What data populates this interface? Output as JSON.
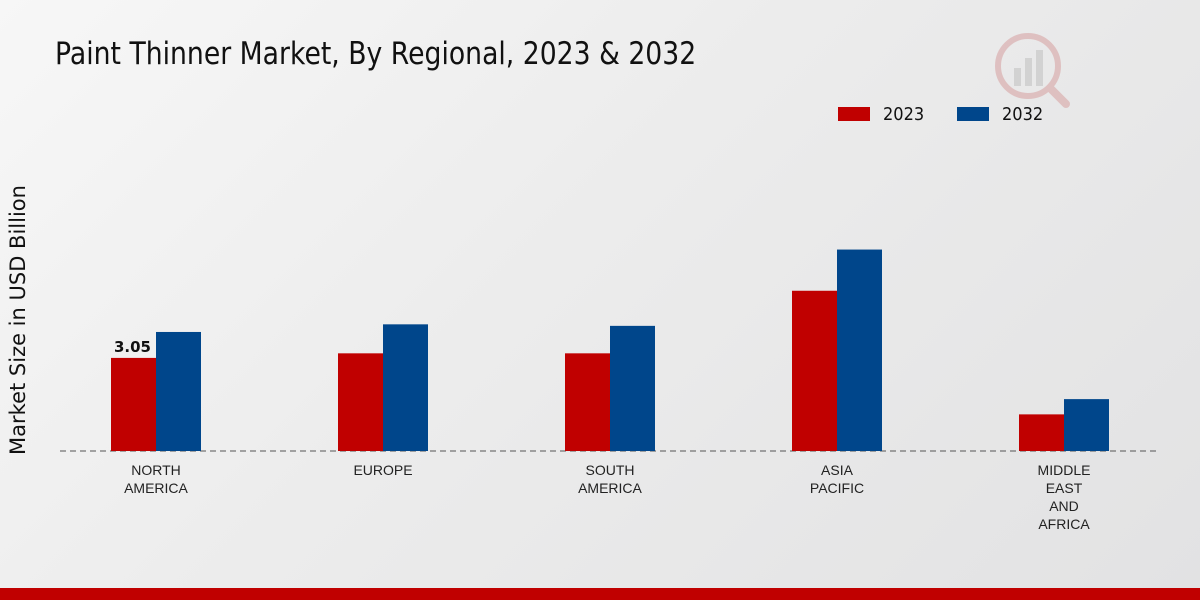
{
  "chart_data": {
    "type": "bar",
    "title": "Paint Thinner Market, By Regional, 2023 & 2032",
    "xlabel": "",
    "ylabel": "Market Size in USD Billion",
    "categories": [
      [
        "NORTH",
        "AMERICA"
      ],
      [
        "EUROPE"
      ],
      [
        "SOUTH",
        "AMERICA"
      ],
      [
        "ASIA",
        "PACIFIC"
      ],
      [
        "MIDDLE",
        "EAST",
        "AND",
        "AFRICA"
      ]
    ],
    "series": [
      {
        "name": "2023",
        "color": "#c00000",
        "values": [
          3.05,
          3.2,
          3.2,
          5.25,
          1.2
        ]
      },
      {
        "name": "2032",
        "color": "#00468b",
        "values": [
          3.9,
          4.15,
          4.1,
          6.6,
          1.7
        ]
      }
    ],
    "data_labels": [
      {
        "series": 0,
        "index": 0,
        "text": "3.05"
      }
    ],
    "ylim": [
      0,
      11.5
    ],
    "grid": false,
    "baseline": "dashed",
    "legend_position": "top-right"
  }
}
